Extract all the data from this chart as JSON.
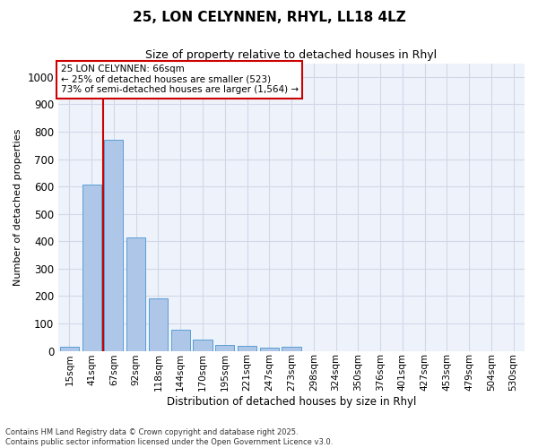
{
  "title_line1": "25, LON CELYNNEN, RHYL, LL18 4LZ",
  "title_line2": "Size of property relative to detached houses in Rhyl",
  "xlabel": "Distribution of detached houses by size in Rhyl",
  "ylabel": "Number of detached properties",
  "categories": [
    "15sqm",
    "41sqm",
    "67sqm",
    "92sqm",
    "118sqm",
    "144sqm",
    "170sqm",
    "195sqm",
    "221sqm",
    "247sqm",
    "273sqm",
    "298sqm",
    "324sqm",
    "350sqm",
    "376sqm",
    "401sqm",
    "427sqm",
    "453sqm",
    "479sqm",
    "504sqm",
    "530sqm"
  ],
  "values": [
    15,
    607,
    772,
    413,
    193,
    78,
    40,
    20,
    17,
    13,
    15,
    0,
    0,
    0,
    0,
    0,
    0,
    0,
    0,
    0,
    0
  ],
  "bar_color": "#aec6e8",
  "bar_edge_color": "#5a9fd4",
  "annotation_line1": "25 LON CELYNNEN: 66sqm",
  "annotation_line2": "← 25% of detached houses are smaller (523)",
  "annotation_line3": "73% of semi-detached houses are larger (1,564) →",
  "annotation_box_color": "#cc0000",
  "ylim": [
    0,
    1050
  ],
  "yticks": [
    0,
    100,
    200,
    300,
    400,
    500,
    600,
    700,
    800,
    900,
    1000
  ],
  "grid_color": "#d0d8e8",
  "bg_color": "#eef2fa",
  "footnote_line1": "Contains HM Land Registry data © Crown copyright and database right 2025.",
  "footnote_line2": "Contains public sector information licensed under the Open Government Licence v3.0."
}
